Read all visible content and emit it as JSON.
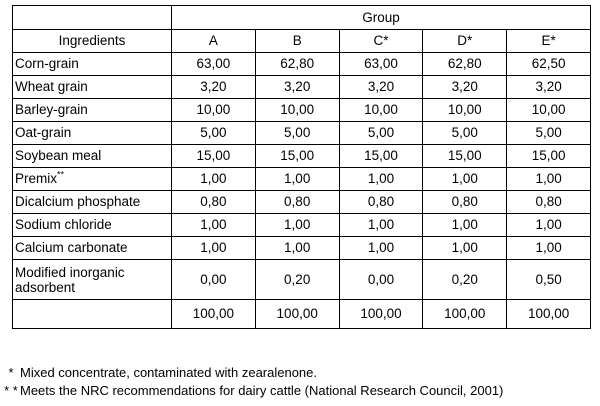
{
  "table": {
    "group_label": "Group",
    "header": [
      "Ingredients",
      "A",
      "B",
      "C*",
      "D*",
      "E*"
    ],
    "rows": [
      {
        "label": "Corn-grain",
        "values": [
          "63,00",
          "62,80",
          "63,00",
          "62,80",
          "62,50"
        ]
      },
      {
        "label": "Wheat grain",
        "values": [
          "3,20",
          "3,20",
          "3,20",
          "3,20",
          "3,20"
        ]
      },
      {
        "label": "Barley-grain",
        "values": [
          "10,00",
          "10,00",
          "10,00",
          "10,00",
          "10,00"
        ]
      },
      {
        "label": "Oat-grain",
        "values": [
          "5,00",
          "5,00",
          "5,00",
          "5,00",
          "5,00"
        ]
      },
      {
        "label": "Soybean meal",
        "values": [
          "15,00",
          "15,00",
          "15,00",
          "15,00",
          "15,00"
        ]
      },
      {
        "label": "Premix",
        "mark": "**",
        "values": [
          "1,00",
          "1,00",
          "1,00",
          "1,00",
          "1,00"
        ]
      },
      {
        "label": "Dicalcium phosphate",
        "values": [
          "0,80",
          "0,80",
          "0,80",
          "0,80",
          "0,80"
        ]
      },
      {
        "label": "Sodium chloride",
        "values": [
          "1,00",
          "1,00",
          "1,00",
          "1,00",
          "1,00"
        ]
      },
      {
        "label": "Calcium carbonate",
        "values": [
          "1,00",
          "1,00",
          "1,00",
          "1,00",
          "1,00"
        ]
      },
      {
        "label": "Modified inorganic adsorbent",
        "values": [
          "0,00",
          "0,20",
          "0,00",
          "0,20",
          "0,50"
        ]
      }
    ],
    "totals": [
      "100,00",
      "100,00",
      "100,00",
      "100,00",
      "100,00"
    ]
  },
  "footnotes": [
    {
      "mark": "*",
      "text": "Mixed concentrate, contaminated with zearalenone."
    },
    {
      "mark": "* *",
      "text": "Meets the NRC recommendations for dairy cattle (National Research Council, 2001)"
    }
  ]
}
